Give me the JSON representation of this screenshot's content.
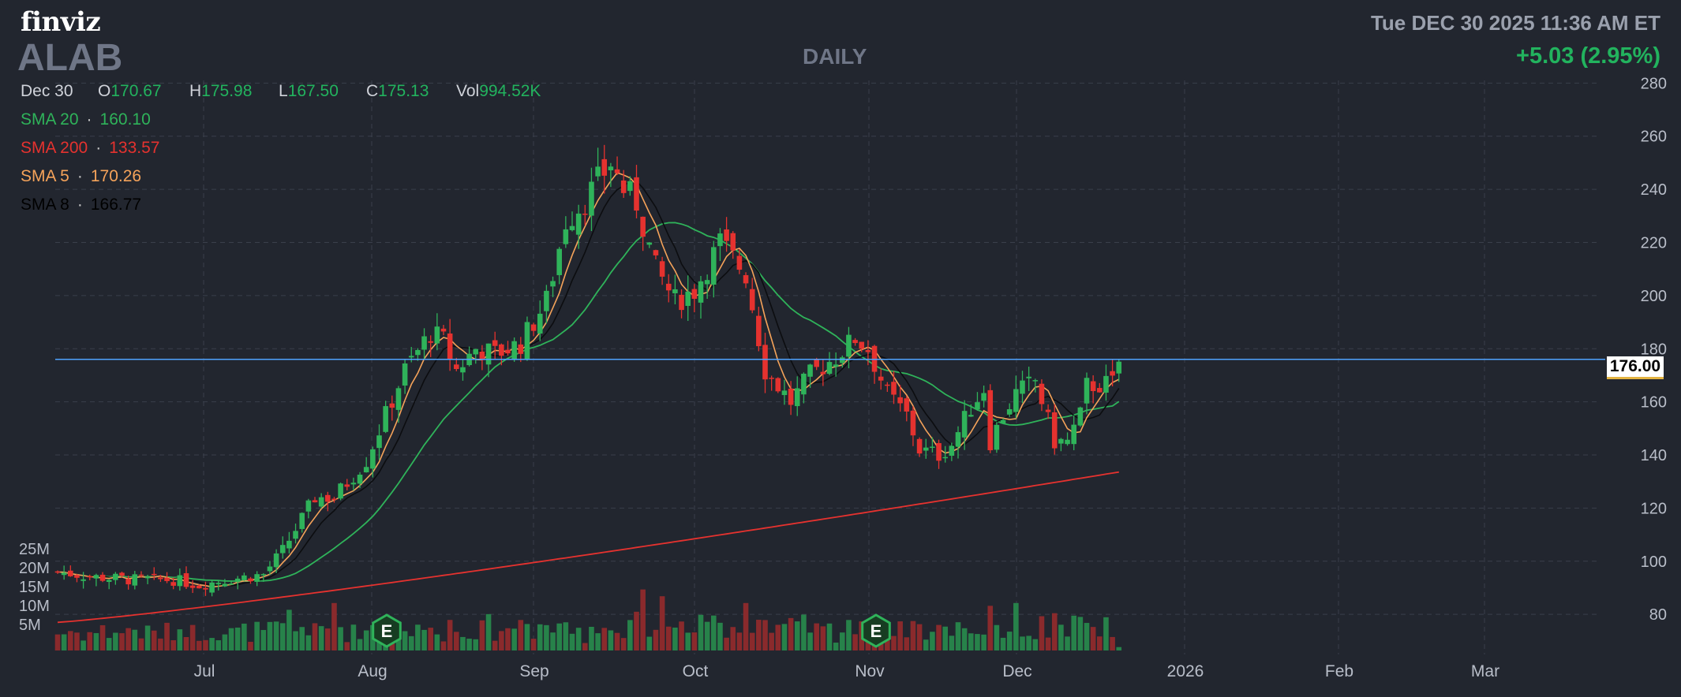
{
  "header": {
    "logo": "finviz",
    "ticker": "ALAB",
    "timeframe": "DAILY",
    "datetime": "Tue DEC 30 2025 11:36 AM ET",
    "change": "+5.03 (2.95%)"
  },
  "ohlc": {
    "date": "Dec 30",
    "open_label": "O",
    "open": "170.67",
    "high_label": "H",
    "high": "175.98",
    "low_label": "L",
    "low": "167.50",
    "close_label": "C",
    "close": "175.13",
    "vol_label": "Vol",
    "vol": "994.52K"
  },
  "sma": [
    {
      "label": "SMA 20",
      "value": "160.10",
      "color": "#2fb35a"
    },
    {
      "label": "SMA 200",
      "value": "133.57",
      "color": "#e5322f"
    },
    {
      "label": "SMA 5",
      "value": "170.26",
      "color": "#f5a35a"
    },
    {
      "label": "SMA 8",
      "value": "166.77",
      "color": "#000000"
    }
  ],
  "current_price_label": "176.00",
  "colors": {
    "background": "#22262f",
    "up": "#2fb35a",
    "down": "#e5322f",
    "vol_up": "#27824a",
    "vol_down": "#8a2a2c",
    "price_line": "#4fa3ff",
    "grid": "#3a3f4b"
  },
  "earnings_markers": [
    {
      "label": "E",
      "date": "Aug 06"
    },
    {
      "label": "E",
      "date": "Nov 04"
    }
  ],
  "chart_data": {
    "type": "candlestick",
    "title": "ALAB",
    "subtitle": "DAILY",
    "x_tick_labels": [
      "Jul",
      "Aug",
      "Sep",
      "Oct",
      "Nov",
      "Dec",
      "2026",
      "Feb",
      "Mar"
    ],
    "y_tick_labels": [
      "280",
      "260",
      "240",
      "220",
      "200",
      "180",
      "160",
      "140",
      "120",
      "100",
      "80"
    ],
    "y_range": [
      75,
      281
    ],
    "volume_tick_labels": [
      "25M",
      "20M",
      "15M",
      "10M",
      "5M"
    ],
    "volume_range": [
      0,
      27000000
    ],
    "grid": true,
    "current_price": 176.0,
    "series_close_anchors": [
      [
        0,
        96
      ],
      [
        6,
        94
      ],
      [
        12,
        93
      ],
      [
        18,
        93
      ],
      [
        22,
        91
      ],
      [
        26,
        93
      ],
      [
        32,
        95
      ],
      [
        35,
        104
      ],
      [
        40,
        124
      ],
      [
        43,
        124
      ],
      [
        48,
        138
      ],
      [
        54,
        172
      ],
      [
        58,
        186
      ],
      [
        60,
        183
      ],
      [
        62,
        172
      ],
      [
        65,
        180
      ],
      [
        68,
        178
      ],
      [
        72,
        182
      ],
      [
        76,
        198
      ],
      [
        79,
        228
      ],
      [
        82,
        236
      ],
      [
        86,
        250
      ],
      [
        88,
        240
      ],
      [
        90,
        235
      ],
      [
        93,
        210
      ],
      [
        96,
        198
      ],
      [
        99,
        202
      ],
      [
        103,
        220
      ],
      [
        107,
        208
      ],
      [
        110,
        172
      ],
      [
        114,
        160
      ],
      [
        117,
        170
      ],
      [
        121,
        177
      ],
      [
        124,
        184
      ],
      [
        126,
        180
      ],
      [
        129,
        163
      ],
      [
        132,
        155
      ],
      [
        134,
        142
      ],
      [
        137,
        140
      ],
      [
        139,
        144
      ],
      [
        142,
        158
      ],
      [
        144,
        165
      ],
      [
        145,
        145
      ],
      [
        147,
        155
      ],
      [
        149,
        163
      ],
      [
        152,
        168
      ],
      [
        155,
        145
      ],
      [
        157,
        145
      ],
      [
        159,
        155
      ],
      [
        160,
        166
      ],
      [
        164,
        167
      ],
      [
        165,
        175
      ]
    ],
    "sma_values_last": {
      "SMA 20": 160.1,
      "SMA 200": 133.57,
      "SMA 5": 170.26,
      "SMA 8": 166.77
    }
  }
}
